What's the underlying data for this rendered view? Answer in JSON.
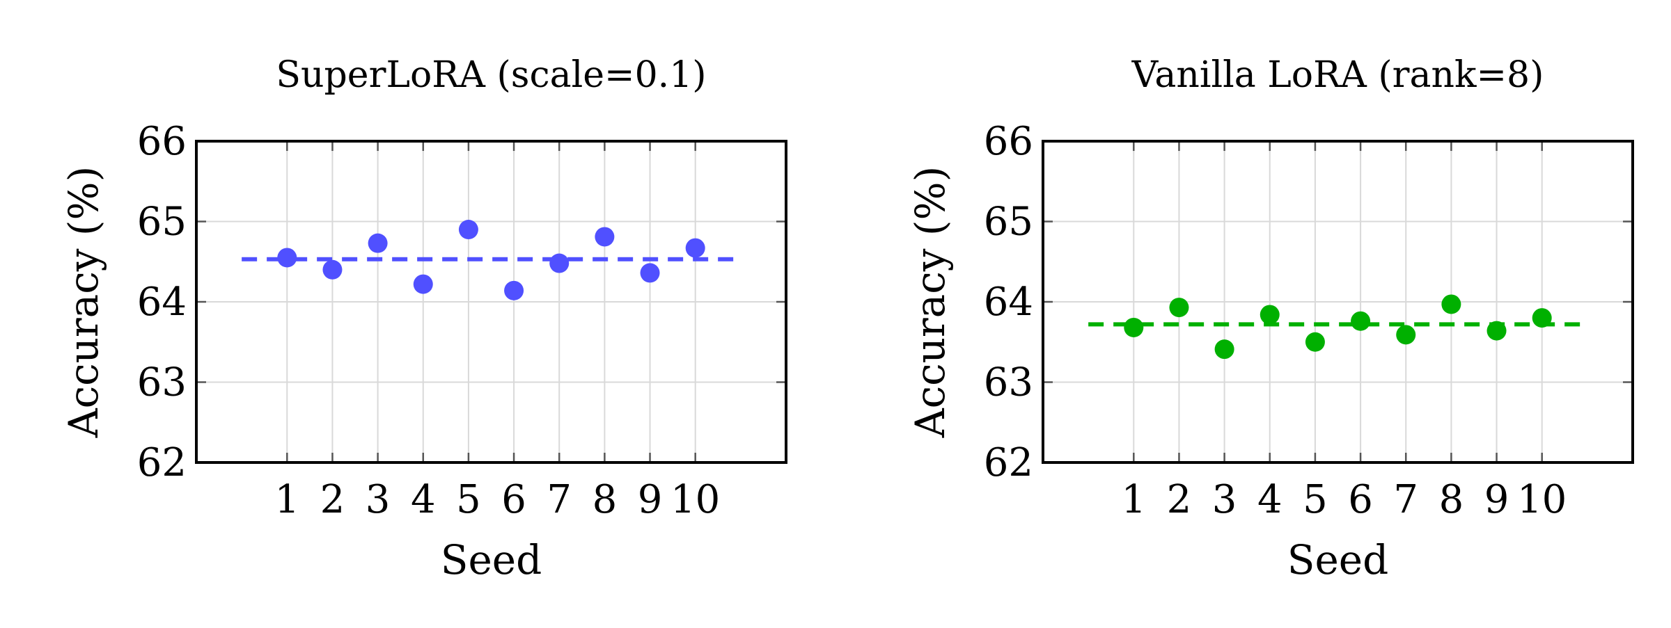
{
  "chart_data": [
    {
      "type": "scatter",
      "title": "SuperLoRA (scale=0.1)",
      "xlabel": "Seed",
      "ylabel": "Accuracy (%)",
      "ylim": [
        62,
        66
      ],
      "xlim": [
        -1,
        12
      ],
      "x_ticks": [
        1,
        2,
        3,
        4,
        5,
        6,
        7,
        8,
        9,
        10
      ],
      "y_ticks": [
        62,
        63,
        64,
        65,
        66
      ],
      "grid": true,
      "color": "#5050ff",
      "series": [
        {
          "x": [
            1,
            2,
            3,
            4,
            5,
            6,
            7,
            8,
            9,
            10
          ],
          "y": [
            64.55,
            64.4,
            64.73,
            64.22,
            64.9,
            64.14,
            64.48,
            64.81,
            64.36,
            64.67
          ]
        }
      ],
      "mean_line": {
        "y": 64.53,
        "x_range": [
          0,
          11
        ],
        "style": "dashed"
      }
    },
    {
      "type": "scatter",
      "title": "Vanilla LoRA (rank=8)",
      "xlabel": "Seed",
      "ylabel": "Accuracy (%)",
      "ylim": [
        62,
        66
      ],
      "xlim": [
        -1,
        12
      ],
      "x_ticks": [
        1,
        2,
        3,
        4,
        5,
        6,
        7,
        8,
        9,
        10
      ],
      "y_ticks": [
        62,
        63,
        64,
        65,
        66
      ],
      "grid": true,
      "color": "#00b000",
      "series": [
        {
          "x": [
            1,
            2,
            3,
            4,
            5,
            6,
            7,
            8,
            9,
            10
          ],
          "y": [
            63.68,
            63.93,
            63.41,
            63.84,
            63.5,
            63.76,
            63.59,
            63.97,
            63.64,
            63.8
          ]
        }
      ],
      "mean_line": {
        "y": 63.72,
        "x_range": [
          0,
          11
        ],
        "style": "dashed"
      }
    }
  ]
}
